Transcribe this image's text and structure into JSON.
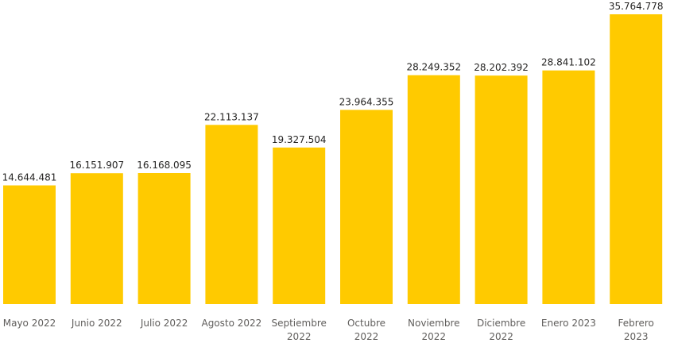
{
  "chart_data": {
    "type": "bar",
    "categories": [
      "Mayo 2022",
      "Junio 2022",
      "Julio 2022",
      "Agosto 2022",
      "Septiembre 2022",
      "Octubre 2022",
      "Noviembre 2022",
      "Diciembre 2022",
      "Enero 2023",
      "Febrero 2023"
    ],
    "values": [
      14644481,
      16151907,
      16168095,
      22113137,
      19327504,
      23964355,
      28249352,
      28202392,
      28841102,
      35764778
    ],
    "value_labels": [
      "14.644.481",
      "16.151.907",
      "16.168.095",
      "22.113.137",
      "19.327.504",
      "23.964.355",
      "28.249.352",
      "28.202.392",
      "28.841.102",
      "35.764.778"
    ],
    "title": "",
    "xlabel": "",
    "ylabel": "",
    "ylim": [
      0,
      35764778
    ],
    "grid": false,
    "bar_color": "#FFCA00"
  }
}
